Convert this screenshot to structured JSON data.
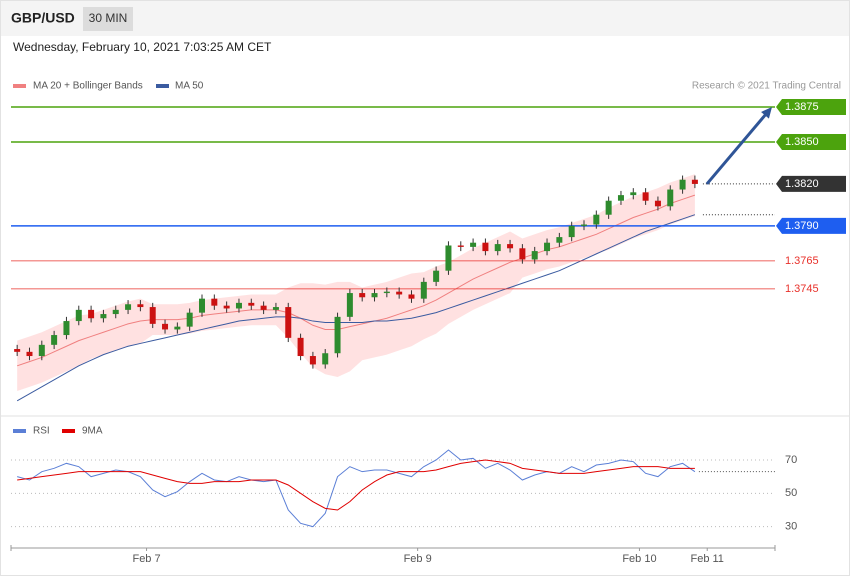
{
  "header": {
    "symbol": "GBP/USD",
    "interval": "30 MIN",
    "date": "Wednesday, February 10, 2021 7:03:25 AM CET",
    "source": "Research © 2021 Trading Central"
  },
  "chart_data": [
    {
      "type": "candlestick",
      "xlim": [
        0,
        62
      ],
      "ylim": [
        1.3657,
        1.3905
      ],
      "up_color": "#2e8b2e",
      "down_color": "#cc1111",
      "candles": {
        "open": [
          1.3702,
          1.37,
          1.3697,
          1.3705,
          1.3712,
          1.3722,
          1.373,
          1.3724,
          1.3727,
          1.373,
          1.3734,
          1.3732,
          1.372,
          1.3716,
          1.3718,
          1.3728,
          1.3738,
          1.3733,
          1.3731,
          1.3735,
          1.3733,
          1.373,
          1.3732,
          1.371,
          1.3697,
          1.3691,
          1.3699,
          1.3725,
          1.3742,
          1.3739,
          1.3742,
          1.3743,
          1.3741,
          1.3738,
          1.375,
          1.3758,
          1.3776,
          1.3775,
          1.3778,
          1.3772,
          1.3777,
          1.3774,
          1.3766,
          1.3772,
          1.3778,
          1.3782,
          1.379,
          1.3791,
          1.3798,
          1.3808,
          1.3812,
          1.3814,
          1.3808,
          1.3804,
          1.3816,
          1.3823
        ],
        "high": [
          1.3705,
          1.3703,
          1.3708,
          1.3715,
          1.3725,
          1.3733,
          1.3733,
          1.373,
          1.3733,
          1.3737,
          1.3737,
          1.3735,
          1.3723,
          1.3721,
          1.3731,
          1.3741,
          1.3741,
          1.3736,
          1.3738,
          1.3738,
          1.3736,
          1.3735,
          1.3735,
          1.3713,
          1.37,
          1.3702,
          1.3728,
          1.3745,
          1.3745,
          1.3745,
          1.3746,
          1.3746,
          1.3744,
          1.3753,
          1.3761,
          1.3779,
          1.3779,
          1.3781,
          1.3781,
          1.378,
          1.378,
          1.3777,
          1.3775,
          1.3781,
          1.3785,
          1.3793,
          1.3794,
          1.3801,
          1.3811,
          1.3815,
          1.3817,
          1.3817,
          1.3811,
          1.3819,
          1.3826,
          1.3826
        ],
        "low": [
          1.3697,
          1.3694,
          1.3694,
          1.3702,
          1.3709,
          1.3719,
          1.3721,
          1.3721,
          1.3724,
          1.3727,
          1.3729,
          1.3717,
          1.3713,
          1.3713,
          1.3715,
          1.3725,
          1.373,
          1.3728,
          1.3728,
          1.373,
          1.3727,
          1.3727,
          1.3707,
          1.3694,
          1.3688,
          1.3688,
          1.3696,
          1.3722,
          1.3736,
          1.3736,
          1.3739,
          1.3738,
          1.3735,
          1.3735,
          1.3747,
          1.3755,
          1.3772,
          1.3772,
          1.3769,
          1.3769,
          1.3771,
          1.3763,
          1.3763,
          1.3769,
          1.3775,
          1.3779,
          1.3787,
          1.3788,
          1.3795,
          1.3805,
          1.3809,
          1.3805,
          1.3801,
          1.3801,
          1.3813,
          1.3817
        ],
        "close": [
          1.37,
          1.3697,
          1.3705,
          1.3712,
          1.3722,
          1.373,
          1.3724,
          1.3727,
          1.373,
          1.3734,
          1.3732,
          1.372,
          1.3716,
          1.3718,
          1.3728,
          1.3738,
          1.3733,
          1.3731,
          1.3735,
          1.3733,
          1.373,
          1.3732,
          1.371,
          1.3697,
          1.3691,
          1.3699,
          1.3725,
          1.3742,
          1.3739,
          1.3742,
          1.3743,
          1.3741,
          1.3738,
          1.375,
          1.3758,
          1.3776,
          1.3775,
          1.3778,
          1.3772,
          1.3777,
          1.3774,
          1.3766,
          1.3772,
          1.3778,
          1.3782,
          1.379,
          1.3791,
          1.3798,
          1.3808,
          1.3812,
          1.3814,
          1.3808,
          1.3804,
          1.3816,
          1.3823,
          1.382
        ]
      },
      "bollinger": {
        "name": "MA 20 + Bollinger Bands",
        "color": "#f08080",
        "fill": "#ffd9d9",
        "ma": [
          1.369,
          1.3693,
          1.3696,
          1.37,
          1.3704,
          1.3708,
          1.3711,
          1.3714,
          1.3717,
          1.372,
          1.3722,
          1.3723,
          1.3723,
          1.3723,
          1.3724,
          1.3726,
          1.3727,
          1.3728,
          1.3729,
          1.373,
          1.373,
          1.373,
          1.3728,
          1.3724,
          1.3719,
          1.3716,
          1.3716,
          1.3718,
          1.372,
          1.3722,
          1.3724,
          1.3727,
          1.373,
          1.3733,
          1.3737,
          1.3742,
          1.3747,
          1.3752,
          1.3756,
          1.376,
          1.3764,
          1.3767,
          1.377,
          1.3773,
          1.3775,
          1.3778,
          1.3781,
          1.3784,
          1.3788,
          1.3792,
          1.3796,
          1.3799,
          1.3802,
          1.3806,
          1.3809,
          1.3812
        ],
        "upper": [
          1.3708,
          1.3711,
          1.3714,
          1.3718,
          1.3722,
          1.3726,
          1.3727,
          1.373,
          1.3733,
          1.3736,
          1.3738,
          1.3734,
          1.3734,
          1.3734,
          1.3735,
          1.3737,
          1.3738,
          1.3739,
          1.374,
          1.3741,
          1.3741,
          1.3741,
          1.3746,
          1.3749,
          1.3749,
          1.3748,
          1.375,
          1.375,
          1.3746,
          1.3748,
          1.375,
          1.3753,
          1.3756,
          1.3757,
          1.3761,
          1.3764,
          1.3769,
          1.3774,
          1.3778,
          1.3782,
          1.3786,
          1.3781,
          1.3784,
          1.3787,
          1.3789,
          1.3792,
          1.3795,
          1.3798,
          1.3803,
          1.3807,
          1.3811,
          1.3814,
          1.3817,
          1.3821,
          1.3824,
          1.3827
        ],
        "lower": [
          1.3672,
          1.3675,
          1.3678,
          1.3682,
          1.3686,
          1.369,
          1.3695,
          1.3698,
          1.3701,
          1.3704,
          1.3706,
          1.3712,
          1.3712,
          1.3712,
          1.3713,
          1.3715,
          1.3716,
          1.3717,
          1.3718,
          1.3719,
          1.3719,
          1.3719,
          1.371,
          1.3699,
          1.3689,
          1.3684,
          1.3682,
          1.3686,
          1.3694,
          1.3696,
          1.3698,
          1.3701,
          1.3704,
          1.3709,
          1.3713,
          1.372,
          1.3725,
          1.373,
          1.3734,
          1.3738,
          1.3742,
          1.3753,
          1.3756,
          1.3759,
          1.3761,
          1.3764,
          1.3767,
          1.377,
          1.3773,
          1.3777,
          1.3781,
          1.3784,
          1.3787,
          1.3791,
          1.3794,
          1.3797
        ]
      },
      "ma50": {
        "name": "MA 50",
        "color": "#3b5ba0",
        "values": [
          1.3665,
          1.367,
          1.3675,
          1.368,
          1.3685,
          1.369,
          1.3694,
          1.3698,
          1.3701,
          1.3704,
          1.3706,
          1.3708,
          1.371,
          1.3712,
          1.3714,
          1.3716,
          1.3718,
          1.372,
          1.3722,
          1.3723,
          1.3724,
          1.3725,
          1.3725,
          1.3724,
          1.3722,
          1.3721,
          1.3721,
          1.3721,
          1.3721,
          1.3722,
          1.3722,
          1.3723,
          1.3724,
          1.3726,
          1.3728,
          1.3731,
          1.3734,
          1.3737,
          1.374,
          1.3743,
          1.3746,
          1.3749,
          1.3752,
          1.3755,
          1.3758,
          1.3762,
          1.3766,
          1.377,
          1.3774,
          1.3778,
          1.3782,
          1.3786,
          1.3789,
          1.3792,
          1.3795,
          1.3798
        ]
      },
      "levels": [
        {
          "value": 1.3875,
          "label": "1.3875",
          "color": "#4ca30d",
          "line": "solid",
          "tag": true
        },
        {
          "value": 1.385,
          "label": "1.3850",
          "color": "#4ca30d",
          "line": "solid",
          "tag": true
        },
        {
          "value": 1.382,
          "label": "1.3820",
          "color": "#333333",
          "line": "dotted",
          "tag": true
        },
        {
          "value": 1.379,
          "label": "1.3790",
          "color": "#1e5ef0",
          "line": "solid",
          "tag": true
        },
        {
          "value": 1.3765,
          "label": "1.3765",
          "color": "#e8302a",
          "line": "solid",
          "tag": false
        },
        {
          "value": 1.3745,
          "label": "1.3745",
          "color": "#e8302a",
          "line": "solid",
          "tag": false
        }
      ],
      "arrow_color": "#2f5597"
    },
    {
      "type": "line",
      "xlim": [
        0,
        62
      ],
      "ylim": [
        19,
        82
      ],
      "yticks": [
        30,
        50,
        70
      ],
      "xticks": [
        {
          "value": 11,
          "label": "Feb 7"
        },
        {
          "value": 33,
          "label": "Feb 9"
        },
        {
          "value": 51,
          "label": "Feb 10"
        },
        {
          "value": 56.5,
          "label": "Feb 11"
        }
      ],
      "series": [
        {
          "name": "RSI",
          "color": "#5b7fd6",
          "values": [
            60,
            58,
            63,
            65,
            68,
            66,
            60,
            62,
            64,
            63,
            60,
            52,
            48,
            51,
            57,
            62,
            58,
            57,
            60,
            58,
            57,
            58,
            40,
            32,
            30,
            38,
            60,
            66,
            63,
            64,
            64,
            62,
            60,
            66,
            70,
            76,
            70,
            71,
            65,
            68,
            64,
            58,
            61,
            63,
            62,
            66,
            63,
            67,
            68,
            70,
            69,
            62,
            60,
            66,
            68,
            63
          ]
        },
        {
          "name": "9MA",
          "color": "#e00000",
          "values": [
            58,
            59,
            60,
            61,
            62,
            63,
            63,
            63,
            63,
            63,
            63,
            61,
            59,
            57,
            56,
            56,
            57,
            57,
            57,
            58,
            58,
            58,
            55,
            50,
            45,
            41,
            40,
            45,
            52,
            57,
            61,
            63,
            63,
            63,
            64,
            66,
            68,
            69,
            70,
            69,
            68,
            65,
            64,
            63,
            62,
            62,
            62,
            63,
            64,
            65,
            66,
            66,
            66,
            65,
            65,
            65
          ]
        }
      ]
    }
  ]
}
